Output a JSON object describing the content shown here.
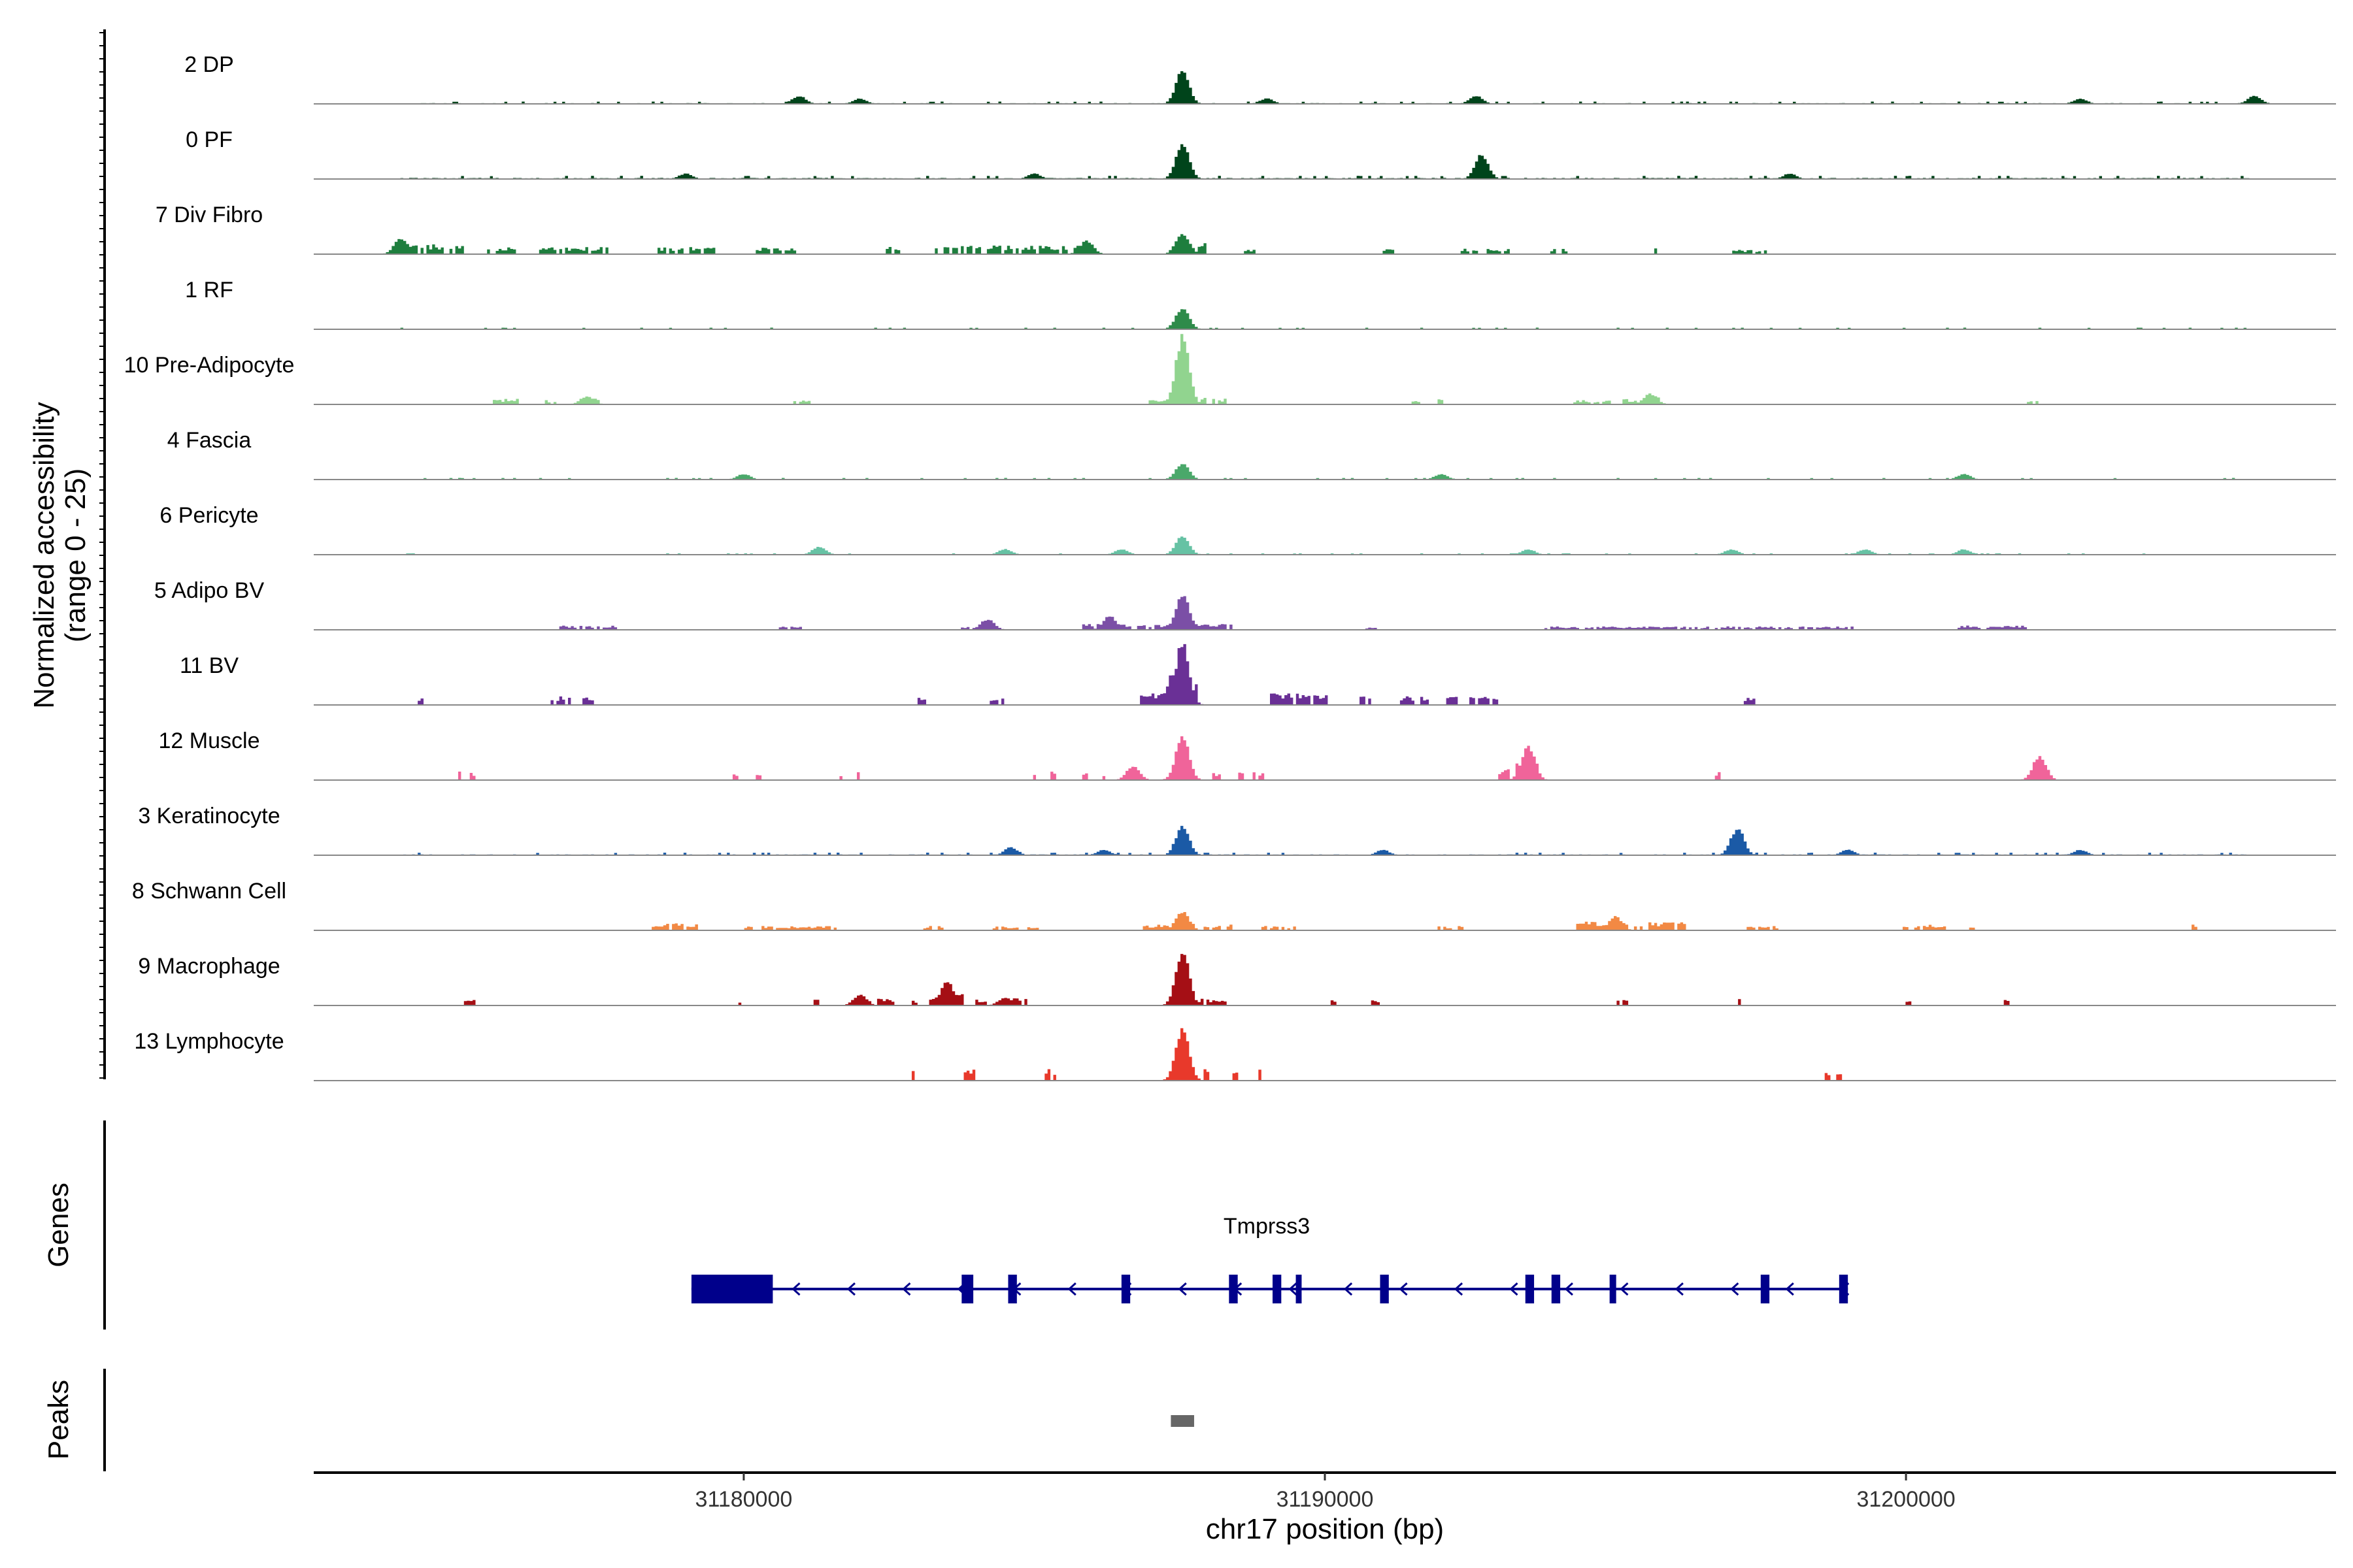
{
  "chart_data": {
    "type": "area",
    "title": "",
    "xlabel": "chr17 position (bp)",
    "ylabel": "Normalized accessibility",
    "ylabel_range": "(range 0 - 25)",
    "ylim": [
      0,
      25
    ],
    "xlim": [
      31172600,
      31207400
    ],
    "x_ticks": [
      31180000,
      31190000,
      31200000
    ],
    "x_tick_labels": [
      "31180000",
      "31190000",
      "31200000"
    ],
    "genes_panel_label": "Genes",
    "peaks_panel_label": "Peaks",
    "tracks": [
      {
        "name": "2 DP",
        "color": "#00441b",
        "noise": 0.5,
        "peaks": [
          [
            31187550,
            12
          ],
          [
            31180950,
            3
          ],
          [
            31182000,
            2
          ],
          [
            31189000,
            2
          ],
          [
            31192600,
            3
          ],
          [
            31203000,
            2
          ],
          [
            31206000,
            3
          ]
        ]
      },
      {
        "name": "0 PF",
        "color": "#00441b",
        "noise": 0.7,
        "peaks": [
          [
            31187550,
            13
          ],
          [
            31192700,
            9
          ],
          [
            31179000,
            2
          ],
          [
            31185000,
            2
          ],
          [
            31198000,
            2
          ]
        ]
      },
      {
        "name": "7 Div Fibro",
        "color": "#1e7e3e",
        "noise": 0,
        "clusters": [
          [
            31174100,
            31175200,
            3.5
          ],
          [
            31175600,
            31176100,
            2.5
          ],
          [
            31176500,
            31177700,
            2.5
          ],
          [
            31178500,
            31179500,
            2.5
          ],
          [
            31180200,
            31180900,
            2.5
          ],
          [
            31182400,
            31182700,
            2.5
          ],
          [
            31183300,
            31185900,
            3
          ],
          [
            31187400,
            31187950,
            4.5
          ],
          [
            31188600,
            31188800,
            2
          ],
          [
            31191000,
            31191200,
            2
          ],
          [
            31192300,
            31193200,
            2
          ],
          [
            31193900,
            31194200,
            2
          ],
          [
            31195600,
            31195800,
            2
          ],
          [
            31196900,
            31197700,
            1.5
          ]
        ],
        "peaks": [
          [
            31174100,
            6
          ],
          [
            31185900,
            5
          ],
          [
            31187550,
            8
          ]
        ]
      },
      {
        "name": "1 RF",
        "color": "#2e8b4a",
        "noise": 0.35,
        "peaks": [
          [
            31187550,
            8
          ]
        ]
      },
      {
        "name": "10 Pre-Adipocyte",
        "color": "#91d48f",
        "noise": 0,
        "clusters": [
          [
            31175700,
            31176200,
            2
          ],
          [
            31176500,
            31176800,
            1.5
          ],
          [
            31177100,
            31177500,
            2
          ],
          [
            31180800,
            31181200,
            1.5
          ],
          [
            31186900,
            31187300,
            1.5
          ],
          [
            31187350,
            31188000,
            3
          ],
          [
            31188000,
            31188300,
            2
          ],
          [
            31191500,
            31191700,
            1.5
          ],
          [
            31191900,
            31192100,
            2
          ],
          [
            31194300,
            31194900,
            1.5
          ],
          [
            31195100,
            31195400,
            2
          ],
          [
            31195500,
            31195750,
            2.5
          ],
          [
            31202100,
            31202300,
            1.5
          ]
        ],
        "peaks": [
          [
            31187550,
            25
          ],
          [
            31177300,
            3
          ],
          [
            31195600,
            4
          ]
        ]
      },
      {
        "name": "4 Fascia",
        "color": "#4aa86a",
        "noise": 0.35,
        "peaks": [
          [
            31187550,
            6
          ],
          [
            31180000,
            2
          ],
          [
            31192000,
            2
          ],
          [
            31201000,
            2
          ]
        ]
      },
      {
        "name": "6 Pericyte",
        "color": "#66c2a4",
        "noise": 0.3,
        "peaks": [
          [
            31187550,
            7
          ],
          [
            31181300,
            3
          ],
          [
            31184500,
            2
          ],
          [
            31186500,
            2
          ],
          [
            31193500,
            2
          ],
          [
            31197000,
            2
          ],
          [
            31199300,
            2
          ],
          [
            31201000,
            2
          ]
        ]
      },
      {
        "name": "5 Adipo BV",
        "color": "#7b4fa6",
        "noise": 0,
        "clusters": [
          [
            31176800,
            31177800,
            1.5
          ],
          [
            31180600,
            31181000,
            1.5
          ],
          [
            31183700,
            31184100,
            1
          ],
          [
            31185800,
            31187300,
            2
          ],
          [
            31187300,
            31188000,
            3
          ],
          [
            31188000,
            31188400,
            2
          ],
          [
            31190700,
            31190900,
            1
          ],
          [
            31193800,
            31199200,
            1.2
          ],
          [
            31200900,
            31202100,
            1.5
          ]
        ],
        "peaks": [
          [
            31187550,
            13
          ],
          [
            31186300,
            5
          ],
          [
            31184200,
            4
          ]
        ]
      },
      {
        "name": "11 BV",
        "color": "#6a3096",
        "noise": 0,
        "clusters": [
          [
            31174400,
            31174500,
            3
          ],
          [
            31176700,
            31177000,
            3
          ],
          [
            31177200,
            31177400,
            3
          ],
          [
            31183000,
            31183200,
            3
          ],
          [
            31184200,
            31184500,
            3
          ],
          [
            31186800,
            31187400,
            4
          ],
          [
            31187400,
            31187800,
            8
          ],
          [
            31189000,
            31190100,
            4
          ],
          [
            31190600,
            31190800,
            3
          ],
          [
            31191300,
            31191800,
            3
          ],
          [
            31192100,
            31192300,
            3
          ],
          [
            31192500,
            31193000,
            3
          ],
          [
            31197200,
            31197400,
            3
          ]
        ],
        "peaks": [
          [
            31187550,
            23
          ],
          [
            31187400,
            12
          ]
        ]
      },
      {
        "name": "12 Muscle",
        "color": "#f0649a",
        "noise": 0,
        "clusters": [
          [
            31175100,
            31175200,
            3
          ],
          [
            31175300,
            31175400,
            3
          ],
          [
            31179800,
            31179900,
            3
          ],
          [
            31180200,
            31180300,
            3
          ],
          [
            31181600,
            31181700,
            3
          ],
          [
            31181900,
            31182000,
            3
          ],
          [
            31185000,
            31185100,
            3
          ],
          [
            31185300,
            31185400,
            3
          ],
          [
            31185800,
            31185900,
            3
          ],
          [
            31186100,
            31186200,
            3
          ],
          [
            31186600,
            31186800,
            4
          ],
          [
            31187400,
            31187700,
            6
          ],
          [
            31188000,
            31188200,
            3
          ],
          [
            31188500,
            31188600,
            3
          ],
          [
            31188700,
            31189000,
            3
          ],
          [
            31193000,
            31193200,
            4
          ],
          [
            31193300,
            31193700,
            9
          ],
          [
            31196300,
            31196400,
            3
          ],
          [
            31196700,
            31196800,
            3
          ]
        ],
        "peaks": [
          [
            31187550,
            16
          ],
          [
            31193500,
            13
          ],
          [
            31202300,
            9
          ],
          [
            31186700,
            5
          ]
        ]
      },
      {
        "name": "3 Keratinocyte",
        "color": "#1b5aa6",
        "noise": 0.55,
        "peaks": [
          [
            31187550,
            11
          ],
          [
            31197100,
            10
          ],
          [
            31184600,
            3
          ],
          [
            31186200,
            2
          ],
          [
            31191000,
            2
          ],
          [
            31199000,
            2
          ],
          [
            31203000,
            2
          ]
        ]
      },
      {
        "name": "8 Schwann Cell",
        "color": "#f28944",
        "noise": 0,
        "clusters": [
          [
            31178400,
            31179200,
            2.5
          ],
          [
            31180000,
            31181600,
            1.5
          ],
          [
            31183100,
            31183500,
            1.5
          ],
          [
            31184300,
            31185100,
            1.5
          ],
          [
            31186700,
            31187400,
            2
          ],
          [
            31187400,
            31187800,
            3
          ],
          [
            31187900,
            31188400,
            2
          ],
          [
            31188900,
            31189500,
            1.5
          ],
          [
            31191900,
            31192400,
            1.5
          ],
          [
            31194300,
            31196200,
            3
          ],
          [
            31197200,
            31197800,
            1.5
          ],
          [
            31199900,
            31200700,
            2
          ],
          [
            31201100,
            31201200,
            1.5
          ],
          [
            31204900,
            31205000,
            2
          ]
        ],
        "peaks": [
          [
            31187550,
            7
          ],
          [
            31195000,
            5
          ]
        ]
      },
      {
        "name": "9 Macrophage",
        "color": "#a50f15",
        "noise": 0,
        "clusters": [
          [
            31175200,
            31175400,
            2
          ],
          [
            31179900,
            31180000,
            2
          ],
          [
            31181200,
            31181300,
            2.5
          ],
          [
            31181900,
            31182600,
            2.5
          ],
          [
            31182900,
            31183000,
            2
          ],
          [
            31183200,
            31183800,
            4
          ],
          [
            31184000,
            31184200,
            2.5
          ],
          [
            31184600,
            31184900,
            2.5
          ],
          [
            31187400,
            31187800,
            5
          ],
          [
            31187800,
            31188300,
            2.5
          ],
          [
            31190100,
            31190200,
            2
          ],
          [
            31190800,
            31191100,
            2
          ],
          [
            31193200,
            31193300,
            2.5
          ],
          [
            31195000,
            31195200,
            2
          ],
          [
            31197100,
            31197200,
            2.5
          ],
          [
            31200000,
            31200100,
            2
          ],
          [
            31201700,
            31201900,
            2
          ]
        ],
        "peaks": [
          [
            31187550,
            20
          ],
          [
            31183500,
            9
          ],
          [
            31182000,
            4
          ],
          [
            31184500,
            3
          ]
        ]
      },
      {
        "name": "13 Lymphocyte",
        "color": "#e8392b",
        "noise": 0,
        "clusters": [
          [
            31182700,
            31182800,
            4
          ],
          [
            31182900,
            31183000,
            4
          ],
          [
            31183800,
            31184000,
            4
          ],
          [
            31185200,
            31185400,
            4
          ],
          [
            31187400,
            31187700,
            7
          ],
          [
            31187900,
            31188000,
            4
          ],
          [
            31188400,
            31188500,
            4
          ],
          [
            31188800,
            31188900,
            4
          ],
          [
            31198600,
            31198700,
            4
          ],
          [
            31198800,
            31198900,
            4
          ]
        ],
        "peaks": [
          [
            31187550,
            19
          ]
        ]
      }
    ],
    "gene": {
      "name": "Tmprss3",
      "strand": "-",
      "start": 31179100,
      "end": 31199000,
      "color": "#00008b",
      "utr": [
        [
          31179100,
          31180500
        ]
      ],
      "exons": [
        [
          31183750,
          31183950
        ],
        [
          31184550,
          31184700
        ],
        [
          31186500,
          31186650
        ],
        [
          31188350,
          31188500
        ],
        [
          31189100,
          31189250
        ],
        [
          31190950,
          31191100
        ],
        [
          31193450,
          31193600
        ],
        [
          31193900,
          31194050
        ],
        [
          31194900,
          31195000
        ],
        [
          31197500,
          31197650
        ],
        [
          31198850,
          31199000
        ]
      ],
      "markers": [
        [
          31189500,
          31189600
        ]
      ]
    },
    "peaks_track": {
      "color": "#666666",
      "regions": [
        [
          31187350,
          31187750
        ]
      ]
    }
  }
}
